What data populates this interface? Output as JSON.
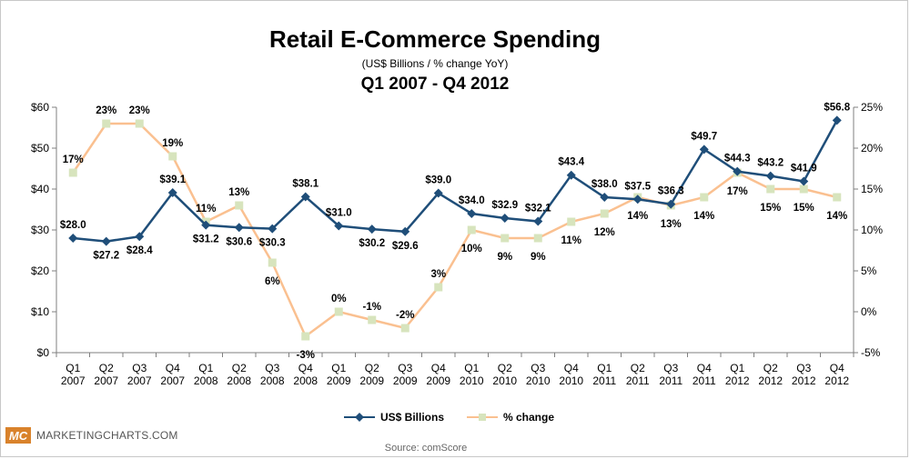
{
  "title": "Retail E-Commerce Spending",
  "subtitle": "(US$ Billions / % change YoY)",
  "period": "Q1 2007 - Q4 2012",
  "brand": {
    "logo_text": "MC",
    "name": "MARKETINGCHARTS.COM"
  },
  "source": "Source:  comScore",
  "colors": {
    "primary": "#1f4e79",
    "secondary": "#fac090",
    "secondary_marker": "#d7e4bd"
  },
  "chart_data": {
    "type": "line",
    "categories": [
      [
        "Q1",
        "2007"
      ],
      [
        "Q2",
        "2007"
      ],
      [
        "Q3",
        "2007"
      ],
      [
        "Q4",
        "2007"
      ],
      [
        "Q1",
        "2008"
      ],
      [
        "Q2",
        "2008"
      ],
      [
        "Q3",
        "2008"
      ],
      [
        "Q4",
        "2008"
      ],
      [
        "Q1",
        "2009"
      ],
      [
        "Q2",
        "2009"
      ],
      [
        "Q3",
        "2009"
      ],
      [
        "Q4",
        "2009"
      ],
      [
        "Q1",
        "2010"
      ],
      [
        "Q2",
        "2010"
      ],
      [
        "Q3",
        "2010"
      ],
      [
        "Q4",
        "2010"
      ],
      [
        "Q1",
        "2011"
      ],
      [
        "Q2",
        "2011"
      ],
      [
        "Q3",
        "2011"
      ],
      [
        "Q4",
        "2011"
      ],
      [
        "Q1",
        "2012"
      ],
      [
        "Q2",
        "2012"
      ],
      [
        "Q3",
        "2012"
      ],
      [
        "Q4",
        "2012"
      ]
    ],
    "left_axis": {
      "min": 0,
      "max": 60,
      "step": 10,
      "ticks": [
        "$0",
        "$10",
        "$20",
        "$30",
        "$40",
        "$50",
        "$60"
      ]
    },
    "right_axis": {
      "min": -5,
      "max": 25,
      "step": 5,
      "ticks": [
        "-5%",
        "0%",
        "5%",
        "10%",
        "15%",
        "20%",
        "25%"
      ]
    },
    "grid": false,
    "legend_position": "bottom",
    "series": [
      {
        "name": "US$ Billions",
        "axis": "left",
        "marker": "diamond",
        "values": [
          28.0,
          27.2,
          28.4,
          39.1,
          31.2,
          30.6,
          30.3,
          38.1,
          31.0,
          30.2,
          29.6,
          39.0,
          34.0,
          32.9,
          32.1,
          43.4,
          38.0,
          37.5,
          36.3,
          49.7,
          44.3,
          43.2,
          41.9,
          56.8
        ],
        "labels": [
          "$28.0",
          "$27.2",
          "$28.4",
          "$39.1",
          "$31.2",
          "$30.6",
          "$30.3",
          "$38.1",
          "$31.0",
          "$30.2",
          "$29.6",
          "$39.0",
          "$34.0",
          "$32.9",
          "$32.1",
          "$43.4",
          "$38.0",
          "$37.5",
          "$36.3",
          "$49.7",
          "$44.3",
          "$43.2",
          "$41.9",
          "$56.8"
        ]
      },
      {
        "name": "% change",
        "axis": "right",
        "marker": "square",
        "values": [
          17,
          23,
          23,
          19,
          11,
          13,
          6,
          -3,
          0,
          -1,
          -2,
          3,
          10,
          9,
          9,
          11,
          12,
          14,
          13,
          14,
          17,
          15,
          15,
          14
        ],
        "labels": [
          "17%",
          "23%",
          "23%",
          "19%",
          "11%",
          "13%",
          "6%",
          "-3%",
          "0%",
          "-1%",
          "-2%",
          "3%",
          "10%",
          "9%",
          "9%",
          "11%",
          "12%",
          "14%",
          "13%",
          "14%",
          "17%",
          "15%",
          "15%",
          "14%"
        ]
      }
    ]
  }
}
